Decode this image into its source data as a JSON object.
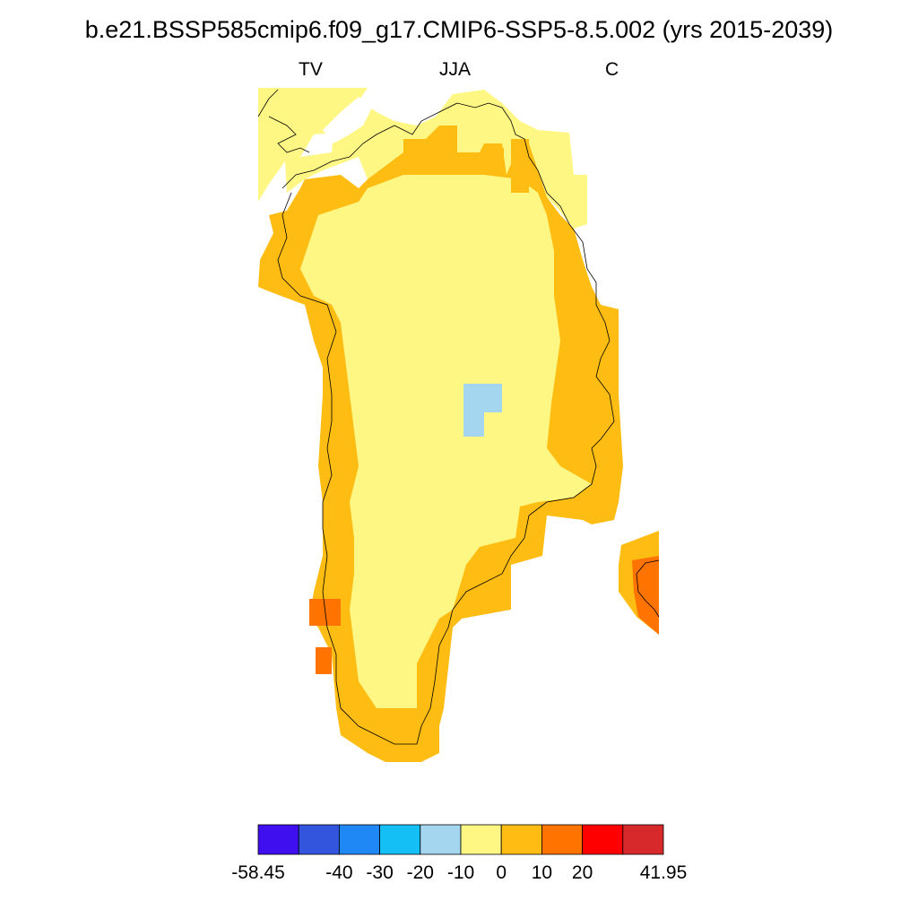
{
  "title": "b.e21.BSSP585cmip6.f09_g17.CMIP6-SSP5-8.5.002 (yrs 2015-2039)",
  "subtitle_left": "TV",
  "subtitle_center": "JJA",
  "subtitle_right": "C",
  "colors": {
    "c0": "#3f0ff0",
    "c1": "#3355dd",
    "c2": "#1f88f5",
    "c3": "#14bff5",
    "c4": "#a4d6f0",
    "c5": "#fff784",
    "c6": "#ffbd14",
    "c7": "#ff7300",
    "c8": "#ff0000",
    "c9": "#d7292b",
    "coast": "#000000"
  },
  "colorbar": {
    "labels": [
      "-58.45",
      "-40",
      "-30",
      "-20",
      "-10",
      "0",
      "10",
      "20",
      "41.95"
    ],
    "colors": [
      "#3f0ff0",
      "#3355dd",
      "#1f88f5",
      "#14bff5",
      "#a4d6f0",
      "#fff784",
      "#ffbd14",
      "#ff7300",
      "#ff0000",
      "#d7292b"
    ]
  }
}
